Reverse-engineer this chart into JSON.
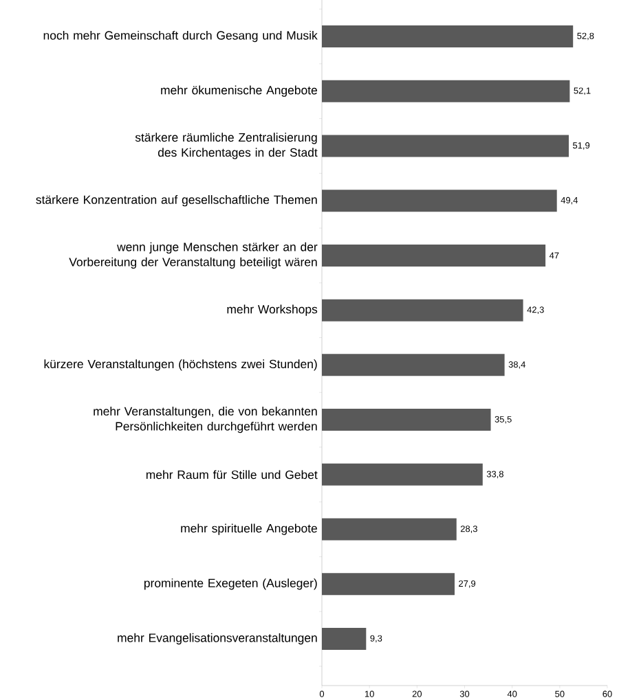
{
  "chart_data": {
    "type": "bar",
    "orientation": "horizontal",
    "categories": [
      "noch mehr Gemeinschaft durch Gesang und Musik",
      "mehr ökumenische Angebote",
      "stärkere räumliche Zentralisierung des Kirchentages in der Stadt",
      "stärkere Konzentration auf gesellschaftliche Themen",
      "wenn junge Menschen stärker an der Vorbereitung der Veranstaltung beteiligt wären",
      "mehr Workshops",
      "kürzere Veranstaltungen (höchstens zwei Stunden)",
      "mehr Veranstaltungen, die von bekannten Persönlichkeiten durchgeführt werden",
      "mehr Raum für Stille und Gebet",
      "mehr spirituelle Angebote",
      "prominente Exegeten (Ausleger)",
      "mehr Evangelisationsveranstaltungen"
    ],
    "values": [
      52.8,
      52.1,
      51.9,
      49.4,
      47,
      42.3,
      38.4,
      35.5,
      33.8,
      28.3,
      27.9,
      9.3
    ],
    "value_labels": [
      "52,8",
      "52,1",
      "51,9",
      "49,4",
      "47",
      "42,3",
      "38,4",
      "35,5",
      "33,8",
      "28,3",
      "27,9",
      "9,3"
    ],
    "color": "#595959",
    "xlim": [
      0,
      60
    ],
    "xticks": [
      0,
      10,
      20,
      30,
      40,
      50,
      60
    ],
    "grid": false
  }
}
